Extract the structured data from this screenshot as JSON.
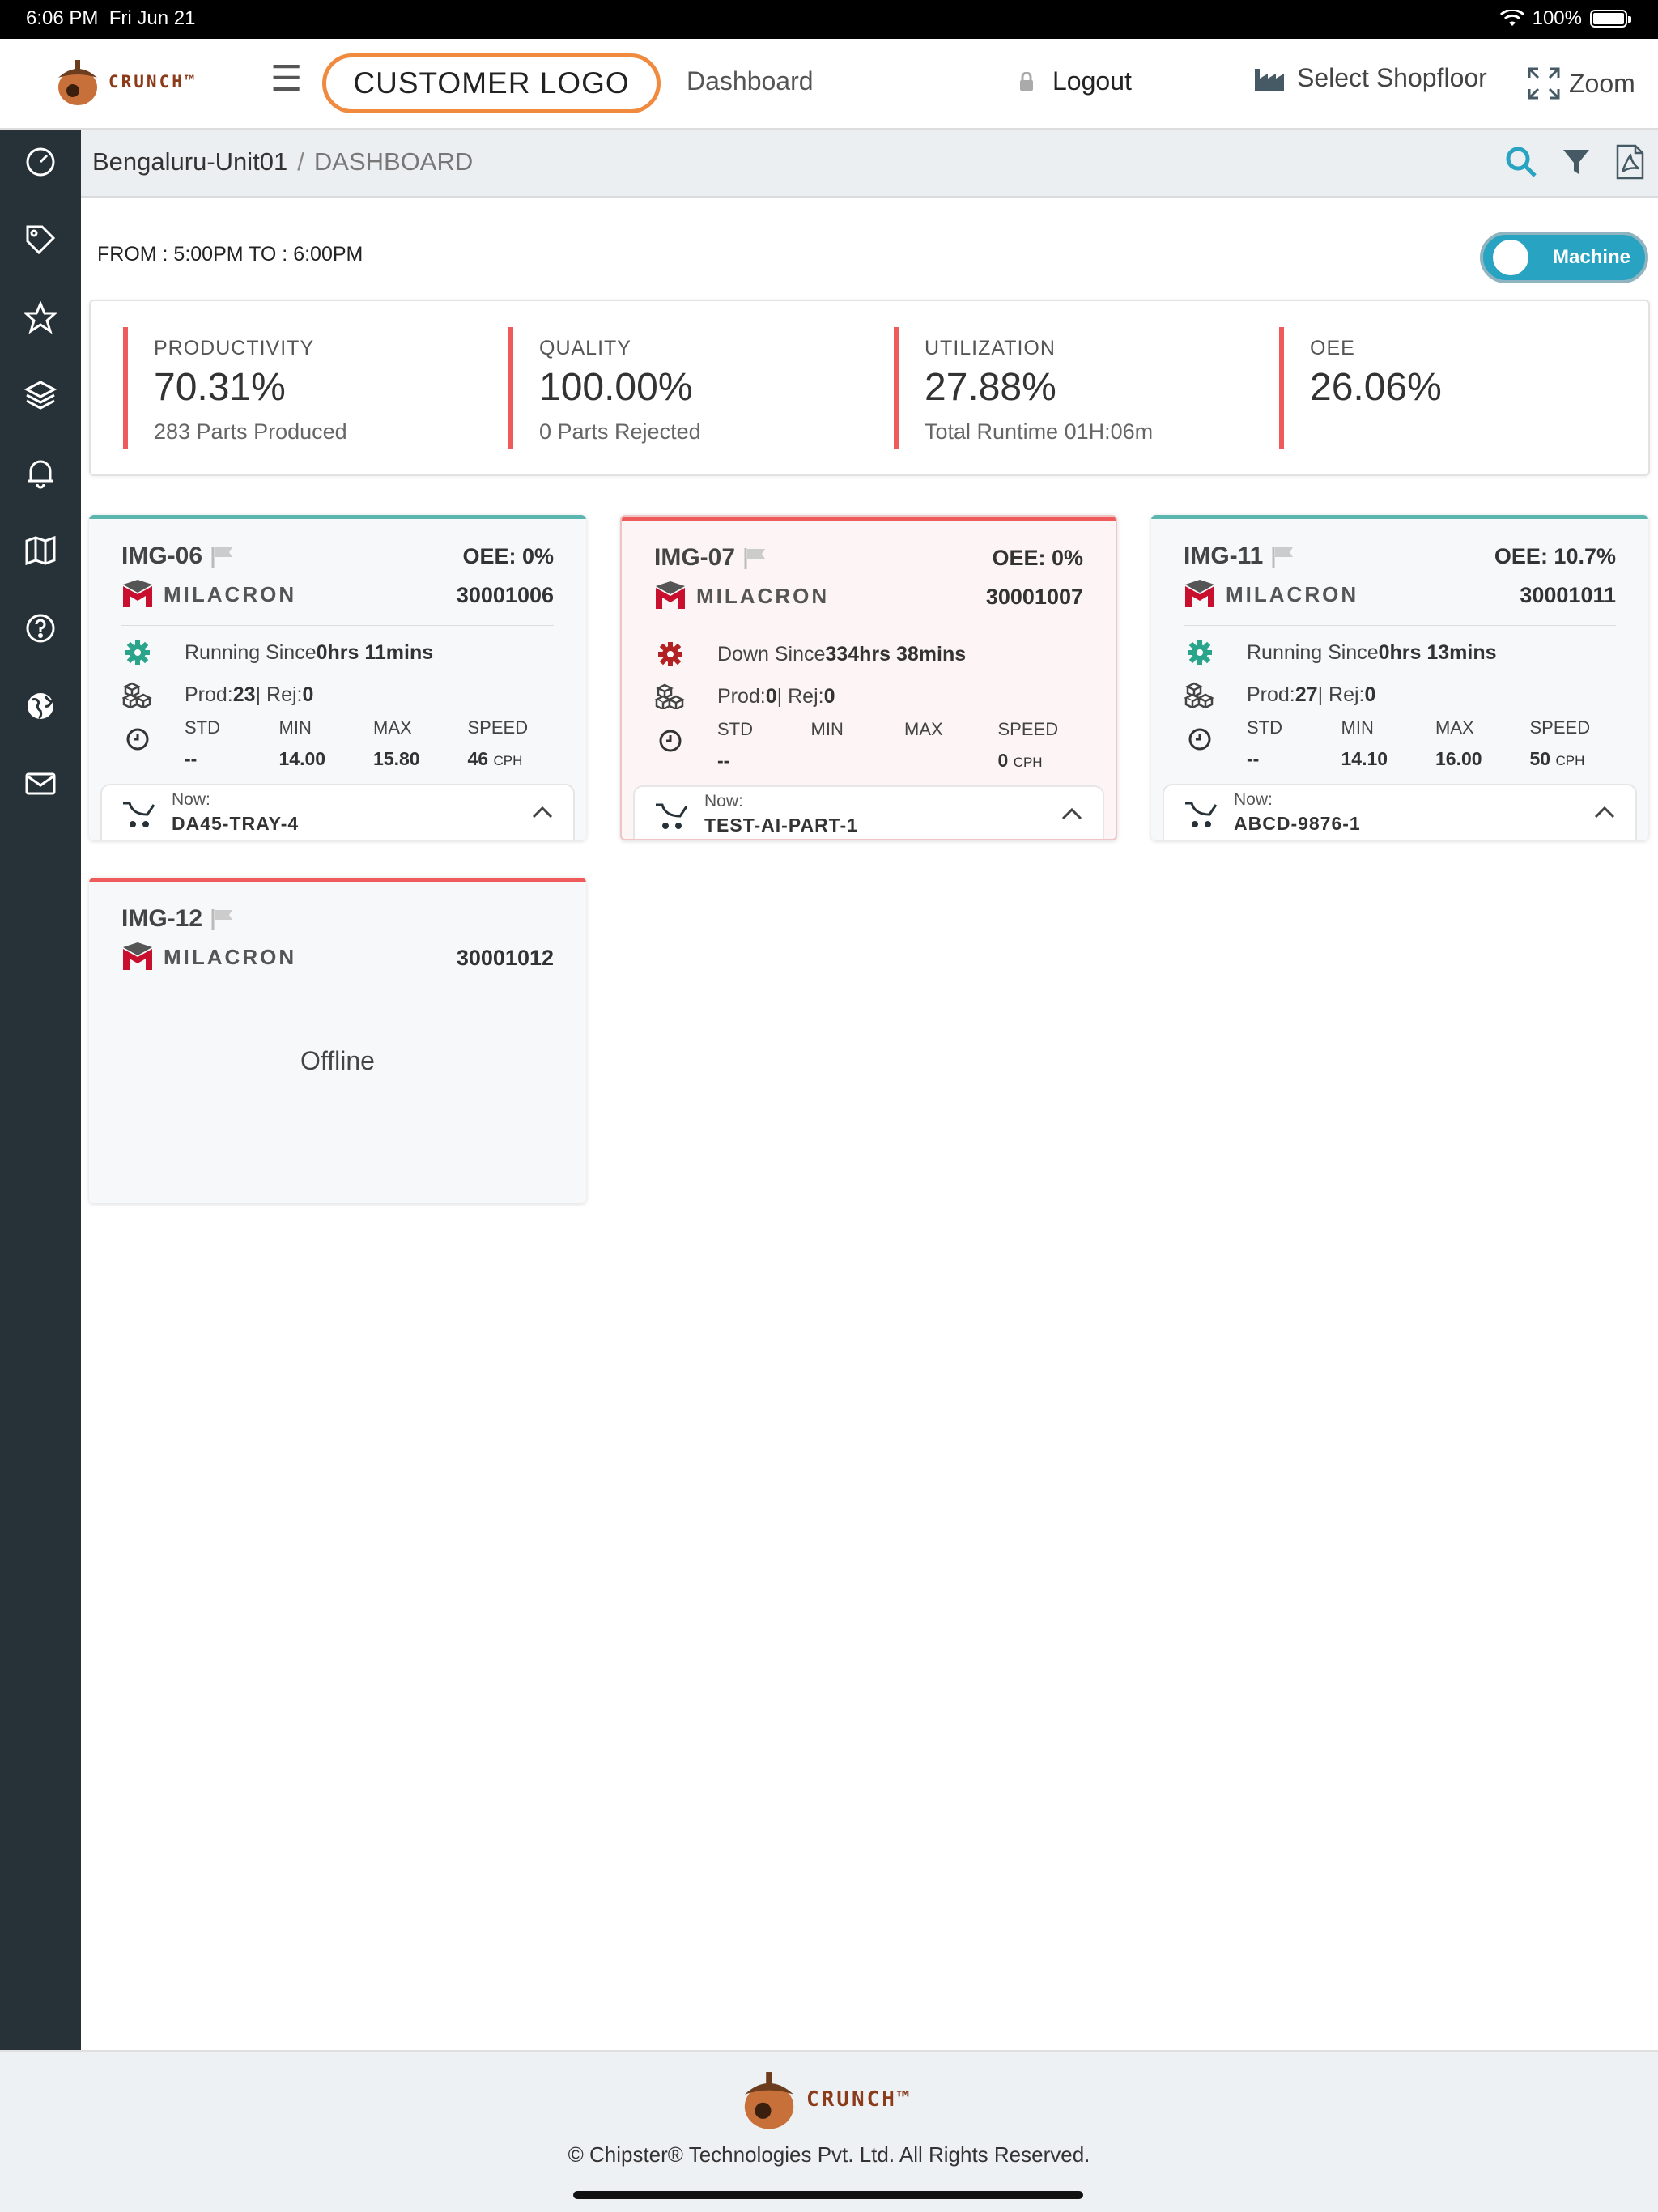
{
  "status": {
    "time": "6:06 PM",
    "date": "Fri Jun 21",
    "battery": "100%"
  },
  "header": {
    "brand": "CRUNCH™",
    "customer_logo": "CUSTOMER LOGO",
    "dashboard": "Dashboard",
    "logout": "Logout",
    "select_shopfloor": "Select Shopfloor",
    "zoom": "Zoom"
  },
  "sidebar": {
    "icons": [
      "dashboard-gauge-icon",
      "tag-icon",
      "star-icon",
      "layers-icon",
      "bell-icon",
      "map-icon",
      "help-icon",
      "globe-icon",
      "mail-icon"
    ]
  },
  "breadcrumb": {
    "location": "Bengaluru-Unit01",
    "separator": "/",
    "page": "DASHBOARD"
  },
  "range": "FROM : 5:00PM TO : 6:00PM",
  "toggle": {
    "label": "Machine",
    "on": true
  },
  "kpis": [
    {
      "title": "PRODUCTIVITY",
      "value": "70.31%",
      "sub": "283 Parts Produced"
    },
    {
      "title": "QUALITY",
      "value": "100.00%",
      "sub": "0 Parts Rejected"
    },
    {
      "title": "UTILIZATION",
      "value": "27.88%",
      "sub": "Total Runtime 01H:06m"
    },
    {
      "title": "OEE",
      "value": "26.06%",
      "sub": ""
    }
  ],
  "colors": {
    "accent": "#29a3c2",
    "kpi_bar": "#ef5b5b",
    "running": "#2aa58b",
    "down": "#b22222",
    "sidebar": "#263238",
    "teal_line": "#5bb6b0",
    "red_line": "#ef5b5b"
  },
  "machines": [
    {
      "name": "IMG-06",
      "oee": "OEE: 0%",
      "maker": "MILACRON",
      "serial": "30001006",
      "status_prefix": "Running Since ",
      "status_value": "0hrs 11mins",
      "prod_label": "Prod: ",
      "prod": "23",
      "rej_label": " | Rej: ",
      "rej": "0",
      "std_h": "STD",
      "min_h": "MIN",
      "max_h": "MAX",
      "speed_h": "SPEED",
      "std": "--",
      "min": "14.00",
      "max": "15.80",
      "speed": "46",
      "speed_unit": "CPH",
      "now_label": "Now:",
      "now": "DA45-TRAY-4"
    },
    {
      "name": "IMG-07",
      "oee": "OEE: 0%",
      "maker": "MILACRON",
      "serial": "30001007",
      "status_prefix": "Down Since ",
      "status_value": "334hrs 38mins",
      "prod_label": "Prod: ",
      "prod": "0",
      "rej_label": " | Rej: ",
      "rej": "0",
      "std_h": "STD",
      "min_h": "MIN",
      "max_h": "MAX",
      "speed_h": "SPEED",
      "std": "--",
      "min": "",
      "max": "",
      "speed": "0",
      "speed_unit": "CPH",
      "now_label": "Now:",
      "now": "TEST-AI-PART-1"
    },
    {
      "name": "IMG-11",
      "oee": "OEE: 10.7%",
      "maker": "MILACRON",
      "serial": "30001011",
      "status_prefix": "Running Since ",
      "status_value": "0hrs 13mins",
      "prod_label": "Prod: ",
      "prod": "27",
      "rej_label": " | Rej: ",
      "rej": "0",
      "std_h": "STD",
      "min_h": "MIN",
      "max_h": "MAX",
      "speed_h": "SPEED",
      "std": "--",
      "min": "14.10",
      "max": "16.00",
      "speed": "50",
      "speed_unit": "CPH",
      "now_label": "Now:",
      "now": "ABCD-9876-1"
    },
    {
      "name": "IMG-12",
      "maker": "MILACRON",
      "serial": "30001012",
      "offline": "Offline"
    }
  ],
  "footer": {
    "brand": "CRUNCH™",
    "copyright": "© Chipster® Technologies Pvt. Ltd. All Rights Reserved."
  }
}
